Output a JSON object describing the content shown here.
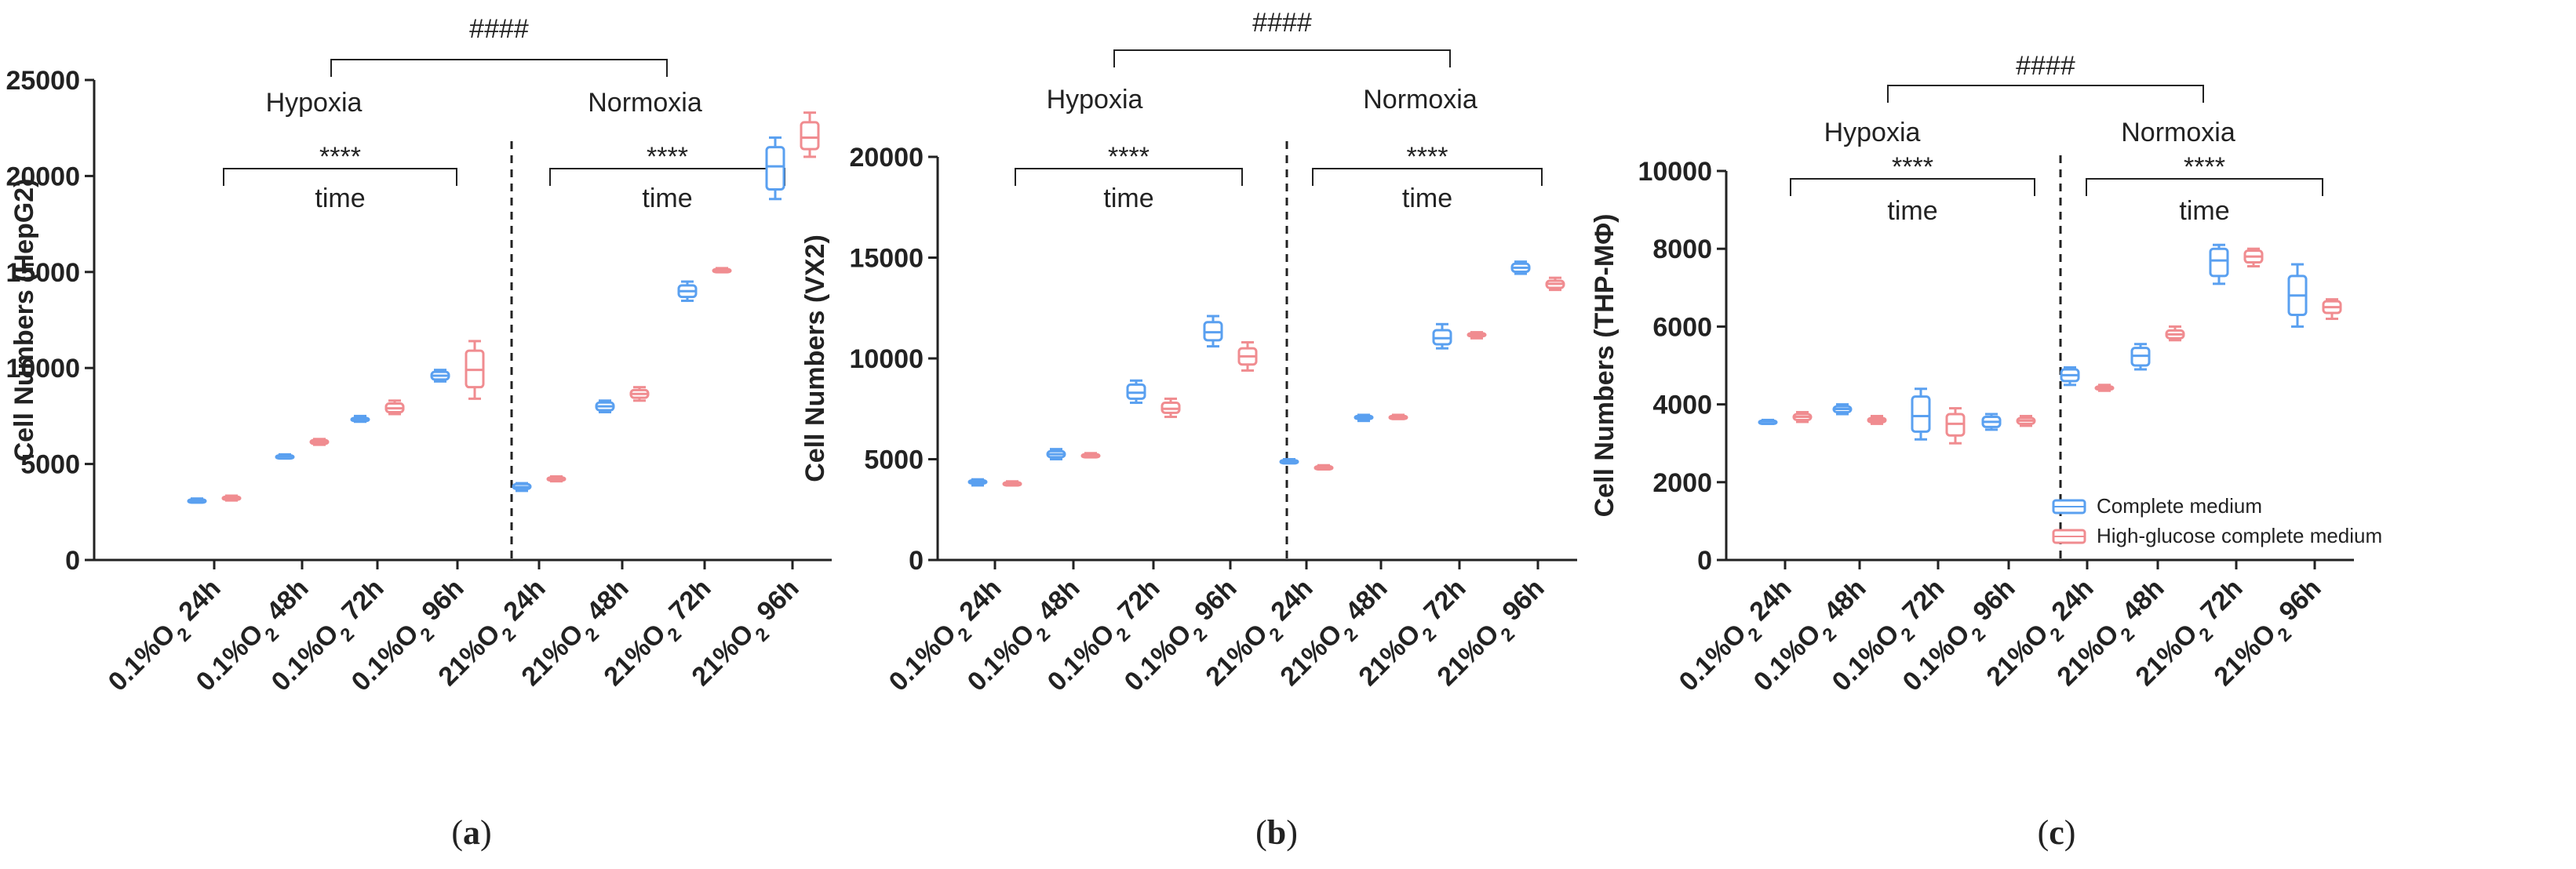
{
  "colors": {
    "complete": "#5aa0f0",
    "high_glucose": "#f08c90",
    "axis": "#222222"
  },
  "legend": {
    "complete": "Complete medium",
    "high_glucose": "High-glucose complete medium"
  },
  "chart_data": [
    {
      "type": "box",
      "panel_label": [
        "(",
        "a",
        ")"
      ],
      "ylabel": "Cell Numbers (HepG2)",
      "ylim": [
        0,
        25000
      ],
      "yticks": [
        "0",
        "5000",
        "10000",
        "15000",
        "20000",
        "25000"
      ],
      "conditions": [
        "Hypoxia",
        "Normoxia"
      ],
      "between_groups_sig": "####",
      "within_group_sig": "****",
      "within_group_label": "time",
      "categories": [
        [
          "0.1%O",
          "2",
          " 24h"
        ],
        [
          "0.1%O",
          "2",
          " 48h"
        ],
        [
          "0.1%O",
          "2",
          " 72h"
        ],
        [
          "0.1%O",
          "2",
          " 96h"
        ],
        [
          "21%O",
          "2",
          " 24h"
        ],
        [
          "21%O",
          "2",
          " 48h"
        ],
        [
          "21%O",
          "2",
          " 72h"
        ],
        [
          "21%O",
          "2",
          " 96h"
        ]
      ],
      "series": [
        {
          "name": "Complete medium",
          "boxes": [
            [
              3000,
              3050,
              3100,
              3150,
              3200
            ],
            [
              5300,
              5350,
              5400,
              5450,
              5500
            ],
            [
              7200,
              7250,
              7300,
              7400,
              7500
            ],
            [
              9300,
              9400,
              9600,
              9800,
              9900
            ],
            [
              3600,
              3700,
              3800,
              3950,
              4000
            ],
            [
              7700,
              7800,
              8000,
              8200,
              8300
            ],
            [
              13500,
              13700,
              14000,
              14300,
              14500
            ],
            [
              18800,
              19300,
              20500,
              21500,
              22000
            ]
          ]
        },
        {
          "name": "High-glucose complete medium",
          "boxes": [
            [
              3100,
              3150,
              3200,
              3300,
              3350
            ],
            [
              6000,
              6050,
              6150,
              6250,
              6300
            ],
            [
              7600,
              7700,
              7900,
              8150,
              8300
            ],
            [
              8400,
              9000,
              9900,
              10900,
              11400
            ],
            [
              4100,
              4150,
              4250,
              4300,
              4350
            ],
            [
              8300,
              8450,
              8650,
              8850,
              9000
            ],
            [
              15000,
              15050,
              15100,
              15150,
              15200
            ],
            [
              21000,
              21400,
              22000,
              22800,
              23300
            ]
          ]
        }
      ]
    },
    {
      "type": "box",
      "panel_label": [
        "(",
        "b",
        ")"
      ],
      "ylabel": "Cell Numbers (VX2)",
      "ylim": [
        0,
        20000
      ],
      "yticks": [
        "0",
        "5000",
        "10000",
        "15000",
        "20000"
      ],
      "conditions": [
        "Hypoxia",
        "Normoxia"
      ],
      "between_groups_sig": "####",
      "within_group_sig": "****",
      "within_group_label": "time",
      "categories": [
        [
          "0.1%O",
          "2",
          " 24h"
        ],
        [
          "0.1%O",
          "2",
          " 48h"
        ],
        [
          "0.1%O",
          "2",
          " 72h"
        ],
        [
          "0.1%O",
          "2",
          " 96h"
        ],
        [
          "21%O",
          "2",
          " 24h"
        ],
        [
          "21%O",
          "2",
          " 48h"
        ],
        [
          "21%O",
          "2",
          " 72h"
        ],
        [
          "21%O",
          "2",
          " 96h"
        ]
      ],
      "series": [
        {
          "name": "Complete medium",
          "boxes": [
            [
              3700,
              3800,
              3900,
              3950,
              4000
            ],
            [
              5000,
              5100,
              5250,
              5400,
              5500
            ],
            [
              7800,
              8000,
              8300,
              8700,
              8900
            ],
            [
              10600,
              10900,
              11300,
              11800,
              12100
            ],
            [
              4800,
              4850,
              4900,
              4950,
              5000
            ],
            [
              6900,
              7000,
              7100,
              7150,
              7200
            ],
            [
              10500,
              10700,
              11000,
              11400,
              11700
            ],
            [
              14200,
              14300,
              14500,
              14700,
              14800
            ]
          ]
        },
        {
          "name": "High-glucose complete medium",
          "boxes": [
            [
              3700,
              3750,
              3800,
              3850,
              3900
            ],
            [
              5100,
              5150,
              5200,
              5250,
              5300
            ],
            [
              7100,
              7300,
              7500,
              7800,
              8000
            ],
            [
              9400,
              9700,
              10100,
              10500,
              10800
            ],
            [
              4500,
              4550,
              4600,
              4650,
              4700
            ],
            [
              7000,
              7050,
              7100,
              7150,
              7200
            ],
            [
              11000,
              11100,
              11200,
              11250,
              11300
            ],
            [
              13400,
              13500,
              13700,
              13850,
              14000
            ]
          ]
        }
      ]
    },
    {
      "type": "box",
      "panel_label": [
        "(",
        "c",
        ")"
      ],
      "ylabel": "Cell Numbers (THP-MΦ)",
      "ylim": [
        0,
        10000
      ],
      "yticks": [
        "0",
        "2000",
        "4000",
        "6000",
        "8000",
        "10000"
      ],
      "conditions": [
        "Hypoxia",
        "Normoxia"
      ],
      "between_groups_sig": "####",
      "within_group_sig": "****",
      "within_group_label": "time",
      "categories": [
        [
          "0.1%O",
          "2",
          " 24h"
        ],
        [
          "0.1%O",
          "2",
          " 48h"
        ],
        [
          "0.1%O",
          "2",
          " 72h"
        ],
        [
          "0.1%O",
          "2",
          " 96h"
        ],
        [
          "21%O",
          "2",
          " 24h"
        ],
        [
          "21%O",
          "2",
          " 48h"
        ],
        [
          "21%O",
          "2",
          " 72h"
        ],
        [
          "21%O",
          "2",
          " 96h"
        ]
      ],
      "series": [
        {
          "name": "Complete medium",
          "boxes": [
            [
              3500,
              3530,
              3560,
              3580,
              3600
            ],
            [
              3750,
              3800,
              3880,
              3950,
              4000
            ],
            [
              3100,
              3300,
              3700,
              4200,
              4400
            ],
            [
              3350,
              3420,
              3550,
              3680,
              3750
            ],
            [
              4500,
              4600,
              4750,
              4900,
              4950
            ],
            [
              4900,
              5000,
              5250,
              5450,
              5550
            ],
            [
              7100,
              7300,
              7700,
              8000,
              8100
            ],
            [
              6000,
              6300,
              6800,
              7300,
              7600
            ]
          ]
        },
        {
          "name": "High-glucose complete medium",
          "boxes": [
            [
              3550,
              3600,
              3680,
              3750,
              3800
            ],
            [
              3500,
              3540,
              3600,
              3650,
              3700
            ],
            [
              3000,
              3200,
              3500,
              3750,
              3900
            ],
            [
              3450,
              3500,
              3580,
              3650,
              3700
            ],
            [
              4350,
              4380,
              4420,
              4460,
              4500
            ],
            [
              5650,
              5700,
              5800,
              5900,
              6000
            ],
            [
              7550,
              7650,
              7800,
              7950,
              8000
            ],
            [
              6200,
              6350,
              6500,
              6650,
              6700
            ]
          ]
        }
      ]
    }
  ]
}
